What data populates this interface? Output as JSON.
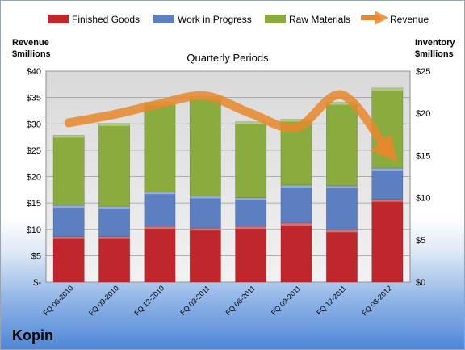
{
  "chart_data": {
    "type": "bar",
    "stacked": true,
    "title": "Quarterly Periods",
    "company": "Kopin",
    "categories": [
      "FQ 06-2010",
      "FQ 09-2010",
      "FQ 12-2010",
      "FQ 03-2011",
      "FQ 06-2011",
      "FQ 09-2011",
      "FQ 12-2011",
      "FQ 03-2012"
    ],
    "series": [
      {
        "name": "Finished Goods",
        "axis": "inventory",
        "color": "#c0272d",
        "values": [
          5.4,
          5.4,
          6.6,
          6.4,
          6.6,
          7.0,
          6.2,
          9.8
        ]
      },
      {
        "name": "Work in Progress",
        "axis": "inventory",
        "color": "#5b7fc0",
        "values": [
          3.7,
          3.6,
          4.1,
          3.8,
          3.4,
          4.5,
          5.2,
          3.7
        ]
      },
      {
        "name": "Raw Materials",
        "axis": "inventory",
        "color": "#8aac3e",
        "values": [
          8.3,
          9.8,
          10.6,
          11.8,
          9.0,
          7.8,
          9.9,
          9.5
        ]
      }
    ],
    "revenue": {
      "name": "Revenue",
      "axis": "revenue",
      "color": "#e8872c",
      "values": [
        30.2,
        31.8,
        33.8,
        35.3,
        32.0,
        29.3,
        35.5,
        25.0
      ]
    },
    "left_axis": {
      "label_line1": "Revenue",
      "label_line2": "$millions",
      "min": 0,
      "max": 40,
      "step": 5,
      "ticks": [
        "$-",
        "$5",
        "$10",
        "$15",
        "$20",
        "$25",
        "$30",
        "$35",
        "$40"
      ]
    },
    "right_axis": {
      "label_line1": "Inventory",
      "label_line2": "$millions",
      "min": 0,
      "max": 25,
      "step": 5,
      "ticks": [
        "$0",
        "$5",
        "$10",
        "$15",
        "$20",
        "$25"
      ]
    },
    "grid": true,
    "legend_position": "top"
  }
}
